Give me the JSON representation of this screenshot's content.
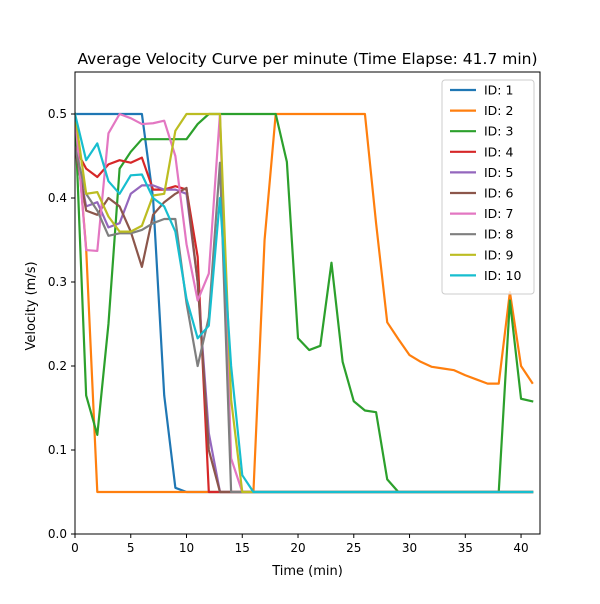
{
  "chart_data": {
    "type": "line",
    "title": "Average Velocity Curve per minute (Time Elapse: 41.7 min)",
    "xlabel": "Time (min)",
    "ylabel": "Velocity (m/s)",
    "xlim": [
      0,
      41.7
    ],
    "ylim": [
      0,
      0.55
    ],
    "xticks": [
      0,
      5,
      10,
      15,
      20,
      25,
      30,
      35,
      40
    ],
    "yticks": [
      0.0,
      0.1,
      0.2,
      0.3,
      0.4,
      0.5
    ],
    "ytick_labels": [
      "0.0",
      "0.1",
      "0.2",
      "0.3",
      "0.4",
      "0.5"
    ],
    "grid": false,
    "legend_position": "top-right",
    "x": [
      0,
      1,
      2,
      3,
      4,
      5,
      6,
      7,
      8,
      9,
      10,
      11,
      12,
      13,
      14,
      15,
      16,
      17,
      18,
      19,
      20,
      21,
      22,
      23,
      24,
      25,
      26,
      27,
      28,
      29,
      30,
      31,
      32,
      33,
      34,
      35,
      36,
      37,
      38,
      39,
      40,
      41
    ],
    "series": [
      {
        "name": "ID: 1",
        "color": "#1f77b4",
        "values": [
          0.5,
          0.5,
          0.5,
          0.5,
          0.5,
          0.5,
          0.5,
          0.4,
          0.165,
          0.055,
          0.05,
          0.05,
          0.05,
          0.05,
          0.05,
          0.05,
          0.05,
          0.05,
          0.05,
          0.05,
          0.05,
          0.05,
          0.05,
          0.05,
          0.05,
          0.05,
          0.05,
          0.05,
          0.05,
          0.05,
          0.05,
          0.05,
          0.05,
          0.05,
          0.05,
          0.05,
          0.05,
          0.05,
          0.05,
          0.05,
          0.05,
          0.05
        ]
      },
      {
        "name": "ID: 2",
        "color": "#ff7f0e",
        "values": [
          0.5,
          0.34,
          0.05,
          0.05,
          0.05,
          0.05,
          0.05,
          0.05,
          0.05,
          0.05,
          0.05,
          0.05,
          0.05,
          0.05,
          0.05,
          0.05,
          0.05,
          0.35,
          0.5,
          0.5,
          0.5,
          0.5,
          0.5,
          0.5,
          0.5,
          0.5,
          0.5,
          0.37,
          0.252,
          0.232,
          0.213,
          0.205,
          0.199,
          0.197,
          0.195,
          0.189,
          0.184,
          0.179,
          0.179,
          0.288,
          0.2,
          0.18
        ]
      },
      {
        "name": "ID: 3",
        "color": "#2ca02c",
        "values": [
          0.5,
          0.165,
          0.118,
          0.25,
          0.435,
          0.455,
          0.47,
          0.47,
          0.47,
          0.47,
          0.47,
          0.488,
          0.5,
          0.5,
          0.5,
          0.5,
          0.5,
          0.5,
          0.5,
          0.443,
          0.233,
          0.219,
          0.224,
          0.323,
          0.205,
          0.158,
          0.147,
          0.145,
          0.065,
          0.05,
          0.05,
          0.05,
          0.05,
          0.05,
          0.05,
          0.05,
          0.05,
          0.05,
          0.05,
          0.278,
          0.161,
          0.158
        ]
      },
      {
        "name": "ID: 4",
        "color": "#d62728",
        "values": [
          0.46,
          0.435,
          0.425,
          0.44,
          0.445,
          0.442,
          0.448,
          0.41,
          0.41,
          0.414,
          0.41,
          0.33,
          0.05,
          0.05,
          0.05,
          0.05,
          0.05,
          0.05,
          0.05,
          0.05,
          0.05,
          0.05,
          0.05,
          0.05,
          0.05,
          0.05,
          0.05,
          0.05,
          0.05,
          0.05,
          0.05,
          0.05,
          0.05,
          0.05,
          0.05,
          0.05,
          0.05,
          0.05,
          0.05,
          0.05,
          0.05,
          0.05
        ]
      },
      {
        "name": "ID: 5",
        "color": "#9467bd",
        "values": [
          0.46,
          0.39,
          0.395,
          0.365,
          0.37,
          0.405,
          0.415,
          0.415,
          0.41,
          0.41,
          0.405,
          0.3,
          0.12,
          0.05,
          0.05,
          0.05,
          0.05,
          0.05,
          0.05,
          0.05,
          0.05,
          0.05,
          0.05,
          0.05,
          0.05,
          0.05,
          0.05,
          0.05,
          0.05,
          0.05,
          0.05,
          0.05,
          0.05,
          0.05,
          0.05,
          0.05,
          0.05,
          0.05,
          0.05,
          0.05,
          0.05,
          0.05
        ]
      },
      {
        "name": "ID: 6",
        "color": "#8c564b",
        "values": [
          0.46,
          0.385,
          0.38,
          0.4,
          0.39,
          0.36,
          0.318,
          0.38,
          0.395,
          0.405,
          0.412,
          0.3,
          0.1,
          0.05,
          0.05,
          0.05,
          0.05,
          0.05,
          0.05,
          0.05,
          0.05,
          0.05,
          0.05,
          0.05,
          0.05,
          0.05,
          0.05,
          0.05,
          0.05,
          0.05,
          0.05,
          0.05,
          0.05,
          0.05,
          0.05,
          0.05,
          0.05,
          0.05,
          0.05,
          0.05,
          0.05,
          0.05
        ]
      },
      {
        "name": "ID: 7",
        "color": "#e377c2",
        "values": [
          0.5,
          0.338,
          0.337,
          0.477,
          0.5,
          0.495,
          0.488,
          0.489,
          0.492,
          0.45,
          0.345,
          0.278,
          0.31,
          0.5,
          0.09,
          0.05,
          0.05,
          0.05,
          0.05,
          0.05,
          0.05,
          0.05,
          0.05,
          0.05,
          0.05,
          0.05,
          0.05,
          0.05,
          0.05,
          0.05,
          0.05,
          0.05,
          0.05,
          0.05,
          0.05,
          0.05,
          0.05,
          0.05,
          0.05,
          0.05,
          0.05,
          0.05
        ]
      },
      {
        "name": "ID: 8",
        "color": "#7f7f7f",
        "values": [
          0.46,
          0.405,
          0.385,
          0.355,
          0.358,
          0.358,
          0.362,
          0.37,
          0.375,
          0.375,
          0.275,
          0.2,
          0.258,
          0.442,
          0.05,
          0.05,
          0.05,
          0.05,
          0.05,
          0.05,
          0.05,
          0.05,
          0.05,
          0.05,
          0.05,
          0.05,
          0.05,
          0.05,
          0.05,
          0.05,
          0.05,
          0.05,
          0.05,
          0.05,
          0.05,
          0.05,
          0.05,
          0.05,
          0.05,
          0.05,
          0.05,
          0.05
        ]
      },
      {
        "name": "ID: 9",
        "color": "#bcbd22",
        "values": [
          0.5,
          0.405,
          0.407,
          0.378,
          0.36,
          0.36,
          0.367,
          0.403,
          0.405,
          0.48,
          0.5,
          0.5,
          0.5,
          0.5,
          0.16,
          0.05,
          0.05,
          0.05,
          0.05,
          0.05,
          0.05,
          0.05,
          0.05,
          0.05,
          0.05,
          0.05,
          0.05,
          0.05,
          0.05,
          0.05,
          0.05,
          0.05,
          0.05,
          0.05,
          0.05,
          0.05,
          0.05,
          0.05,
          0.05,
          0.05,
          0.05,
          0.05
        ]
      },
      {
        "name": "ID: 10",
        "color": "#17becf",
        "values": [
          0.5,
          0.445,
          0.465,
          0.42,
          0.405,
          0.427,
          0.428,
          0.4,
          0.39,
          0.36,
          0.28,
          0.233,
          0.248,
          0.4,
          0.2,
          0.07,
          0.05,
          0.05,
          0.05,
          0.05,
          0.05,
          0.05,
          0.05,
          0.05,
          0.05,
          0.05,
          0.05,
          0.05,
          0.05,
          0.05,
          0.05,
          0.05,
          0.05,
          0.05,
          0.05,
          0.05,
          0.05,
          0.05,
          0.05,
          0.05,
          0.05,
          0.05
        ]
      }
    ]
  }
}
